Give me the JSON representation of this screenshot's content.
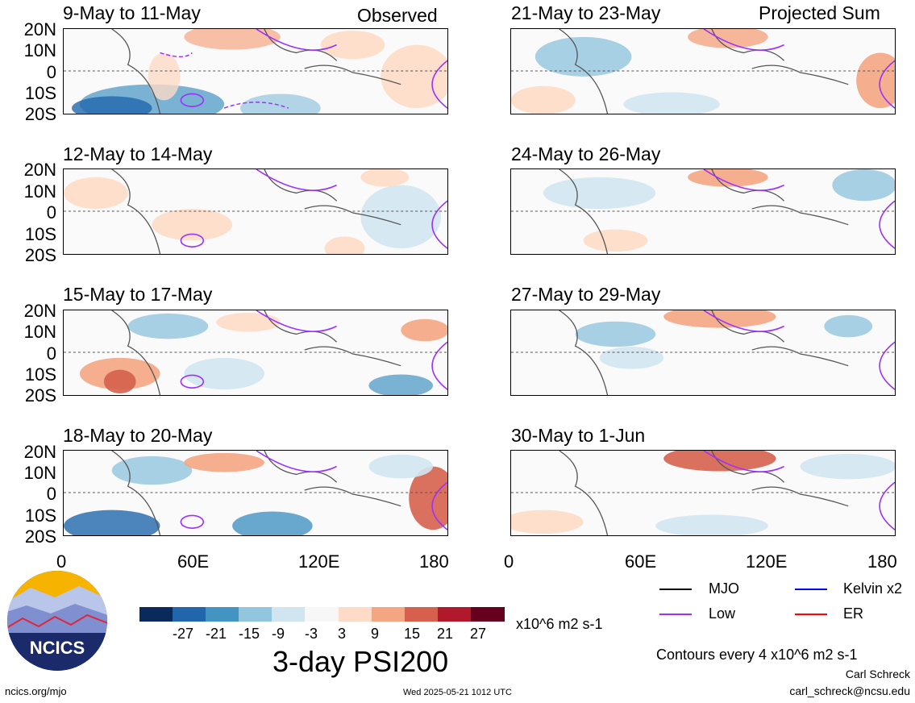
{
  "labels": {
    "observed": "Observed",
    "projected": "Projected Sum",
    "lat": [
      "20N",
      "10N",
      "0",
      "10S",
      "20S"
    ],
    "lon": [
      "0",
      "60E",
      "120E",
      "180"
    ]
  },
  "panels_left": [
    {
      "title": "9-May to 11-May"
    },
    {
      "title": "12-May to 14-May"
    },
    {
      "title": "15-May to 17-May"
    },
    {
      "title": "18-May to 20-May"
    }
  ],
  "panels_right": [
    {
      "title": "21-May to 23-May"
    },
    {
      "title": "24-May to 26-May"
    },
    {
      "title": "27-May to 29-May"
    },
    {
      "title": "30-May to 1-Jun"
    }
  ],
  "colorbar": {
    "ticks": [
      "-27",
      "-21",
      "-15",
      "-9",
      "-3",
      "3",
      "9",
      "15",
      "21",
      "27"
    ],
    "colors": [
      "#0b2a5c",
      "#2166ac",
      "#4393c3",
      "#92c5de",
      "#d1e5f0",
      "#f7f7f7",
      "#fddbc7",
      "#f4a582",
      "#d6604d",
      "#b2182b",
      "#67001f"
    ],
    "units": "x10^6 m2 s-1",
    "title": "3-day PSI200"
  },
  "legend": {
    "mjo": "MJO",
    "low": "Low",
    "kelvin": "Kelvin x2",
    "er": "ER",
    "mjo_color": "#000000",
    "low_color": "#9b30ff",
    "kelvin_color": "#0000ff",
    "er_color": "#ff0000"
  },
  "contours_note": "Contours every 4 x10^6 m2 s-1",
  "logo_text": "NCICS",
  "footer": {
    "url": "ncics.org/mjo",
    "timestamp": "Wed 2025-05-21 1012 UTC",
    "author": "Carl Schreck",
    "email": "carl_schreck@ncsu.edu"
  }
}
